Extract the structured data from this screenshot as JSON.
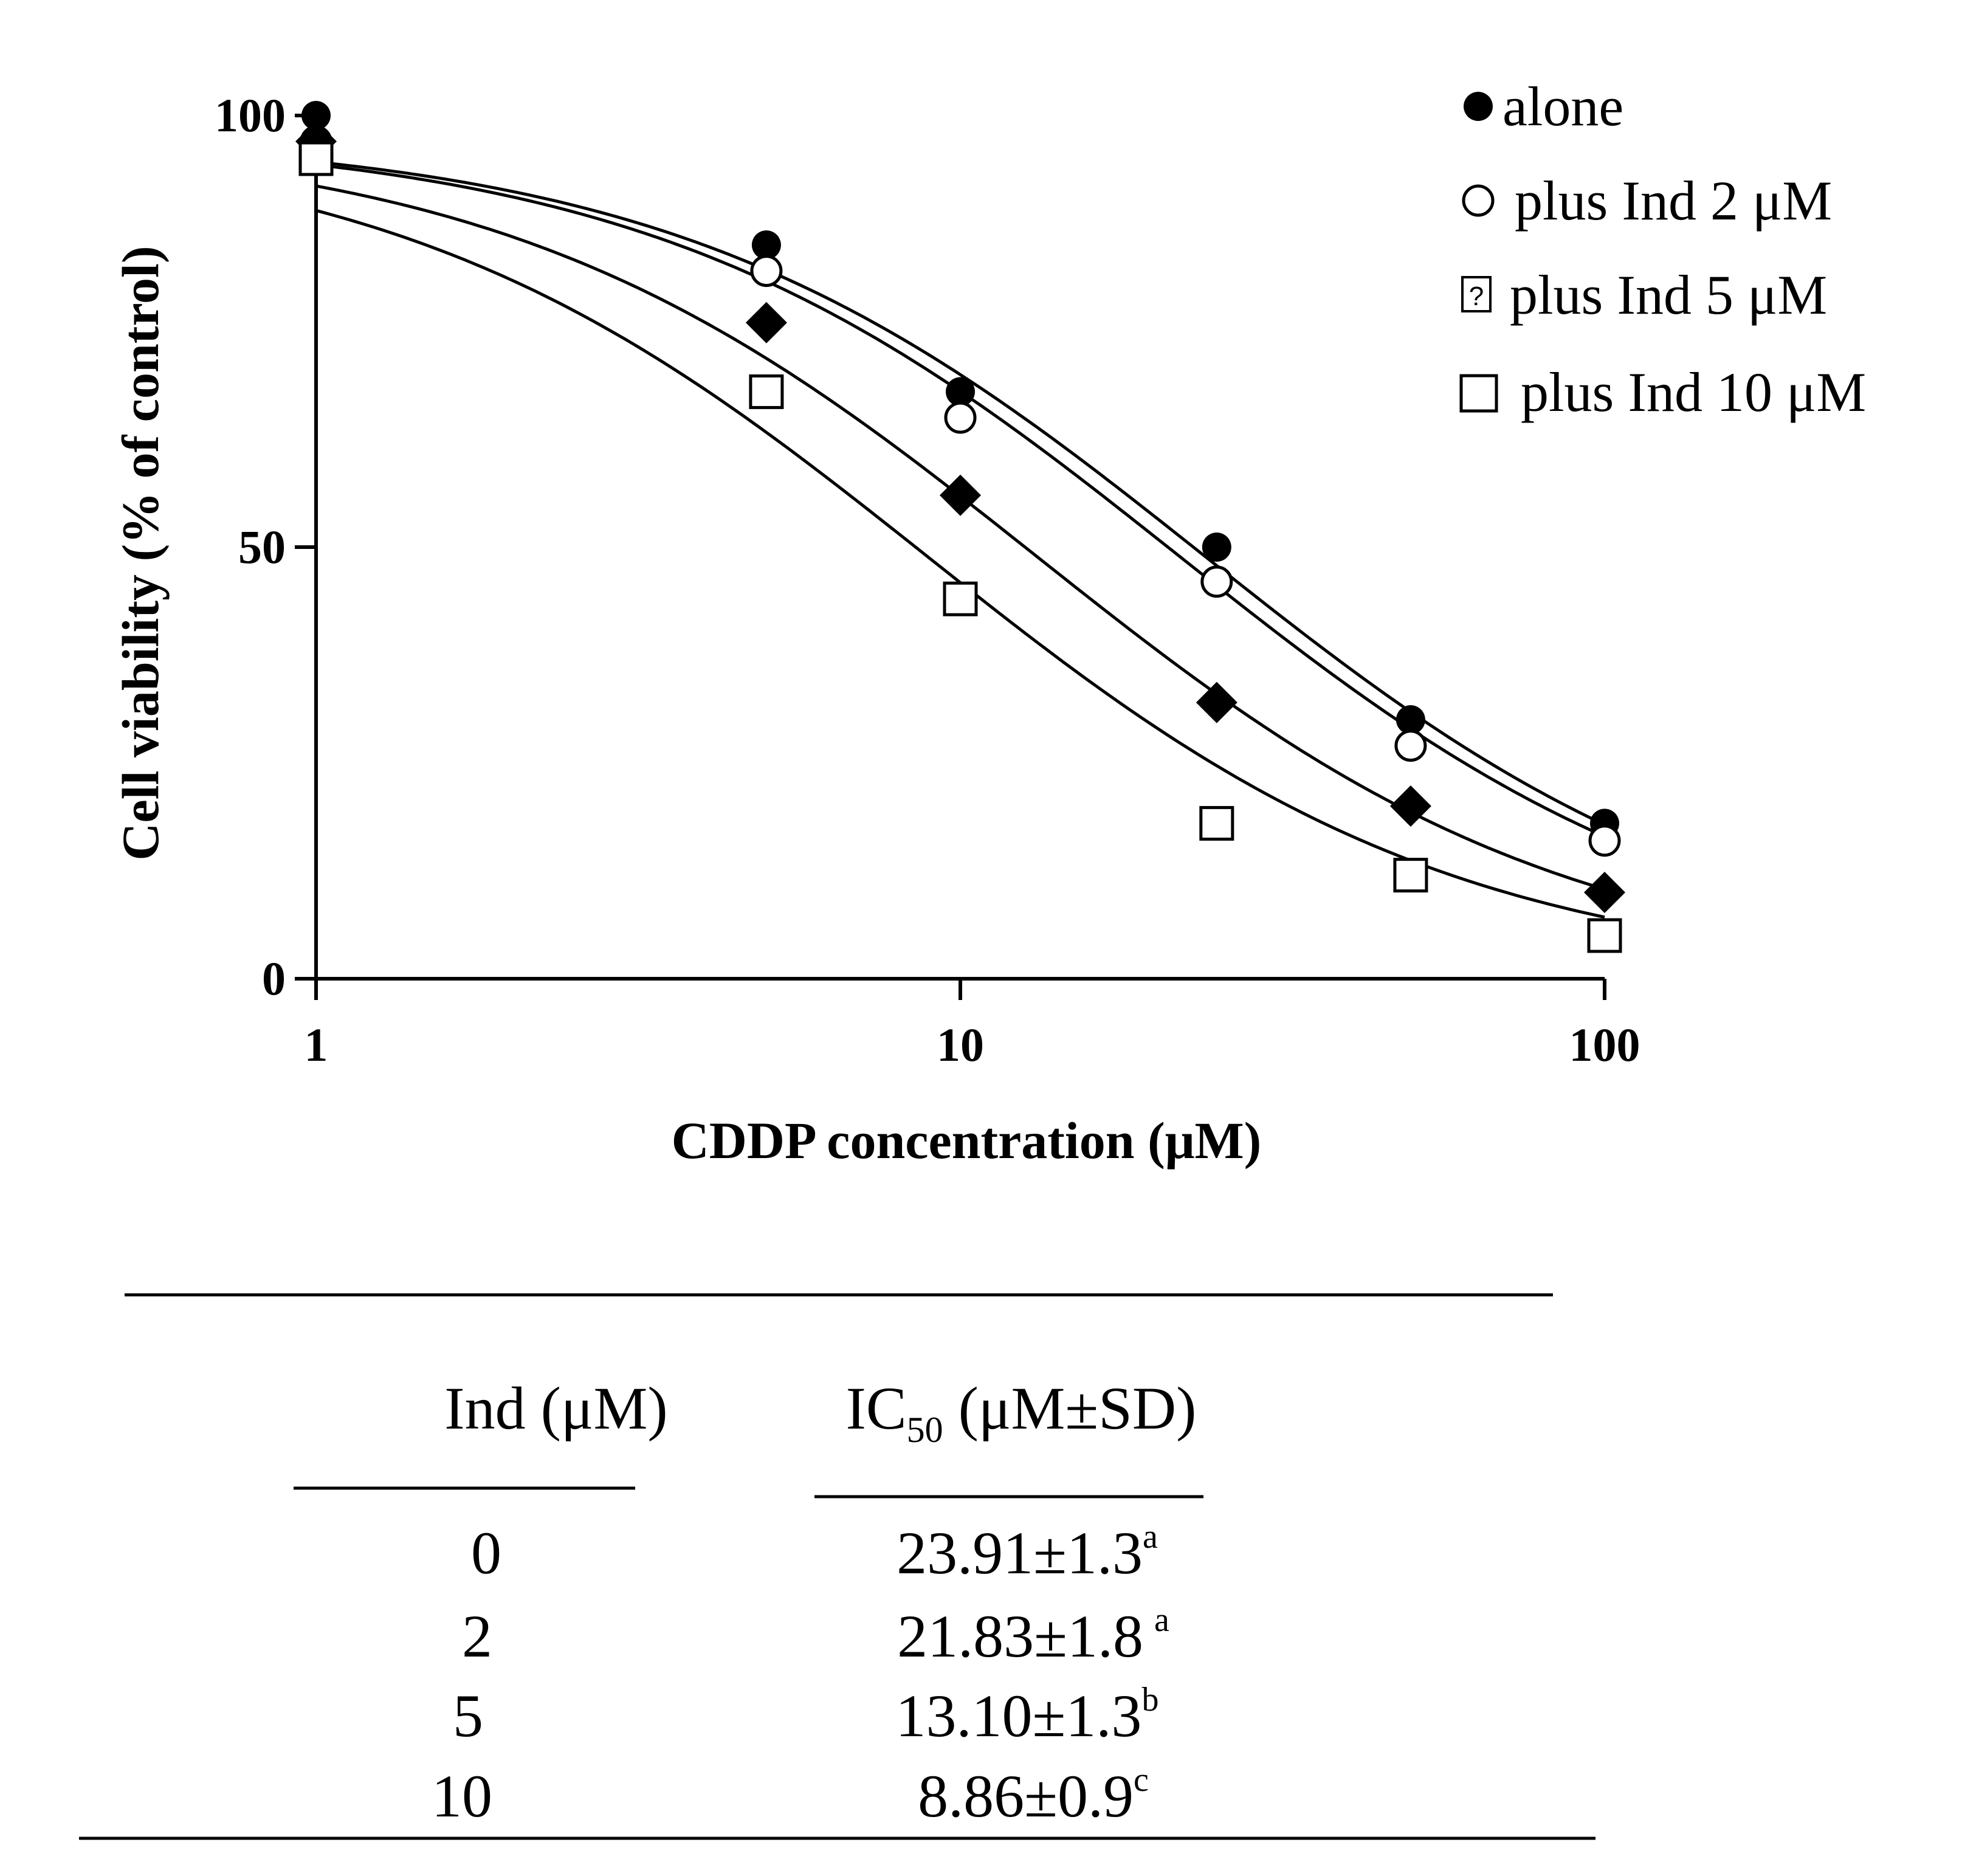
{
  "chart_data": {
    "type": "scatter",
    "title": "",
    "xlabel": "CDDP concentration (μM)",
    "ylabel": "Cell viability (% of control)",
    "xscale": "log",
    "xlim": [
      1,
      100
    ],
    "ylim": [
      0,
      100
    ],
    "xticks": [
      "1",
      "10",
      "100"
    ],
    "yticks": [
      "0",
      "50",
      "100"
    ],
    "x": [
      1,
      5,
      10,
      25,
      50,
      100
    ],
    "series": [
      {
        "name": "alone",
        "marker": "filled-circle",
        "values": [
          100,
          85,
          68,
          50,
          30,
          18
        ],
        "fit": {
          "top": 98,
          "bottom": 0,
          "ic50": 23.91,
          "hill": 1.05
        }
      },
      {
        "name": "plus Ind 2 μM",
        "marker": "open-circle",
        "values": [
          97,
          82,
          65,
          46,
          27,
          16
        ],
        "fit": {
          "top": 98,
          "bottom": 0,
          "ic50": 21.83,
          "hill": 1.05
        }
      },
      {
        "name": "plus Ind 5 μM",
        "marker": "filled-diamond",
        "values": [
          97,
          76,
          56,
          32,
          20,
          10
        ],
        "fit": {
          "top": 98,
          "bottom": 0,
          "ic50": 13.1,
          "hill": 1.05
        }
      },
      {
        "name": "plus Ind 10 μM",
        "marker": "open-square",
        "values": [
          95,
          68,
          44,
          18,
          12,
          5
        ],
        "fit": {
          "top": 98,
          "bottom": 0,
          "ic50": 8.86,
          "hill": 1.05
        }
      }
    ],
    "legend": [
      {
        "symbol": "●",
        "label": "alone"
      },
      {
        "symbol": "○",
        "label": "plus Ind 2 μM"
      },
      {
        "symbol": "⍰",
        "label": "plus Ind 5 μM"
      },
      {
        "symbol": "□",
        "label": "plus Ind 10 μM"
      }
    ],
    "legend_position": "top-right"
  },
  "table": {
    "headers": {
      "ind": "Ind (μM)",
      "ic50_main": "IC",
      "ic50_sub": "50",
      "ic50_rest": " (μM±SD)"
    },
    "rows": [
      {
        "ind": "0",
        "value": "23.91±1.3",
        "sup": "a"
      },
      {
        "ind": "2",
        "value": "21.83±1.8",
        "sup": "a"
      },
      {
        "ind": "5",
        "value": "13.10±1.3",
        "sup": "b"
      },
      {
        "ind": "10",
        "value": "8.86±0.9",
        "sup": "c"
      }
    ]
  }
}
